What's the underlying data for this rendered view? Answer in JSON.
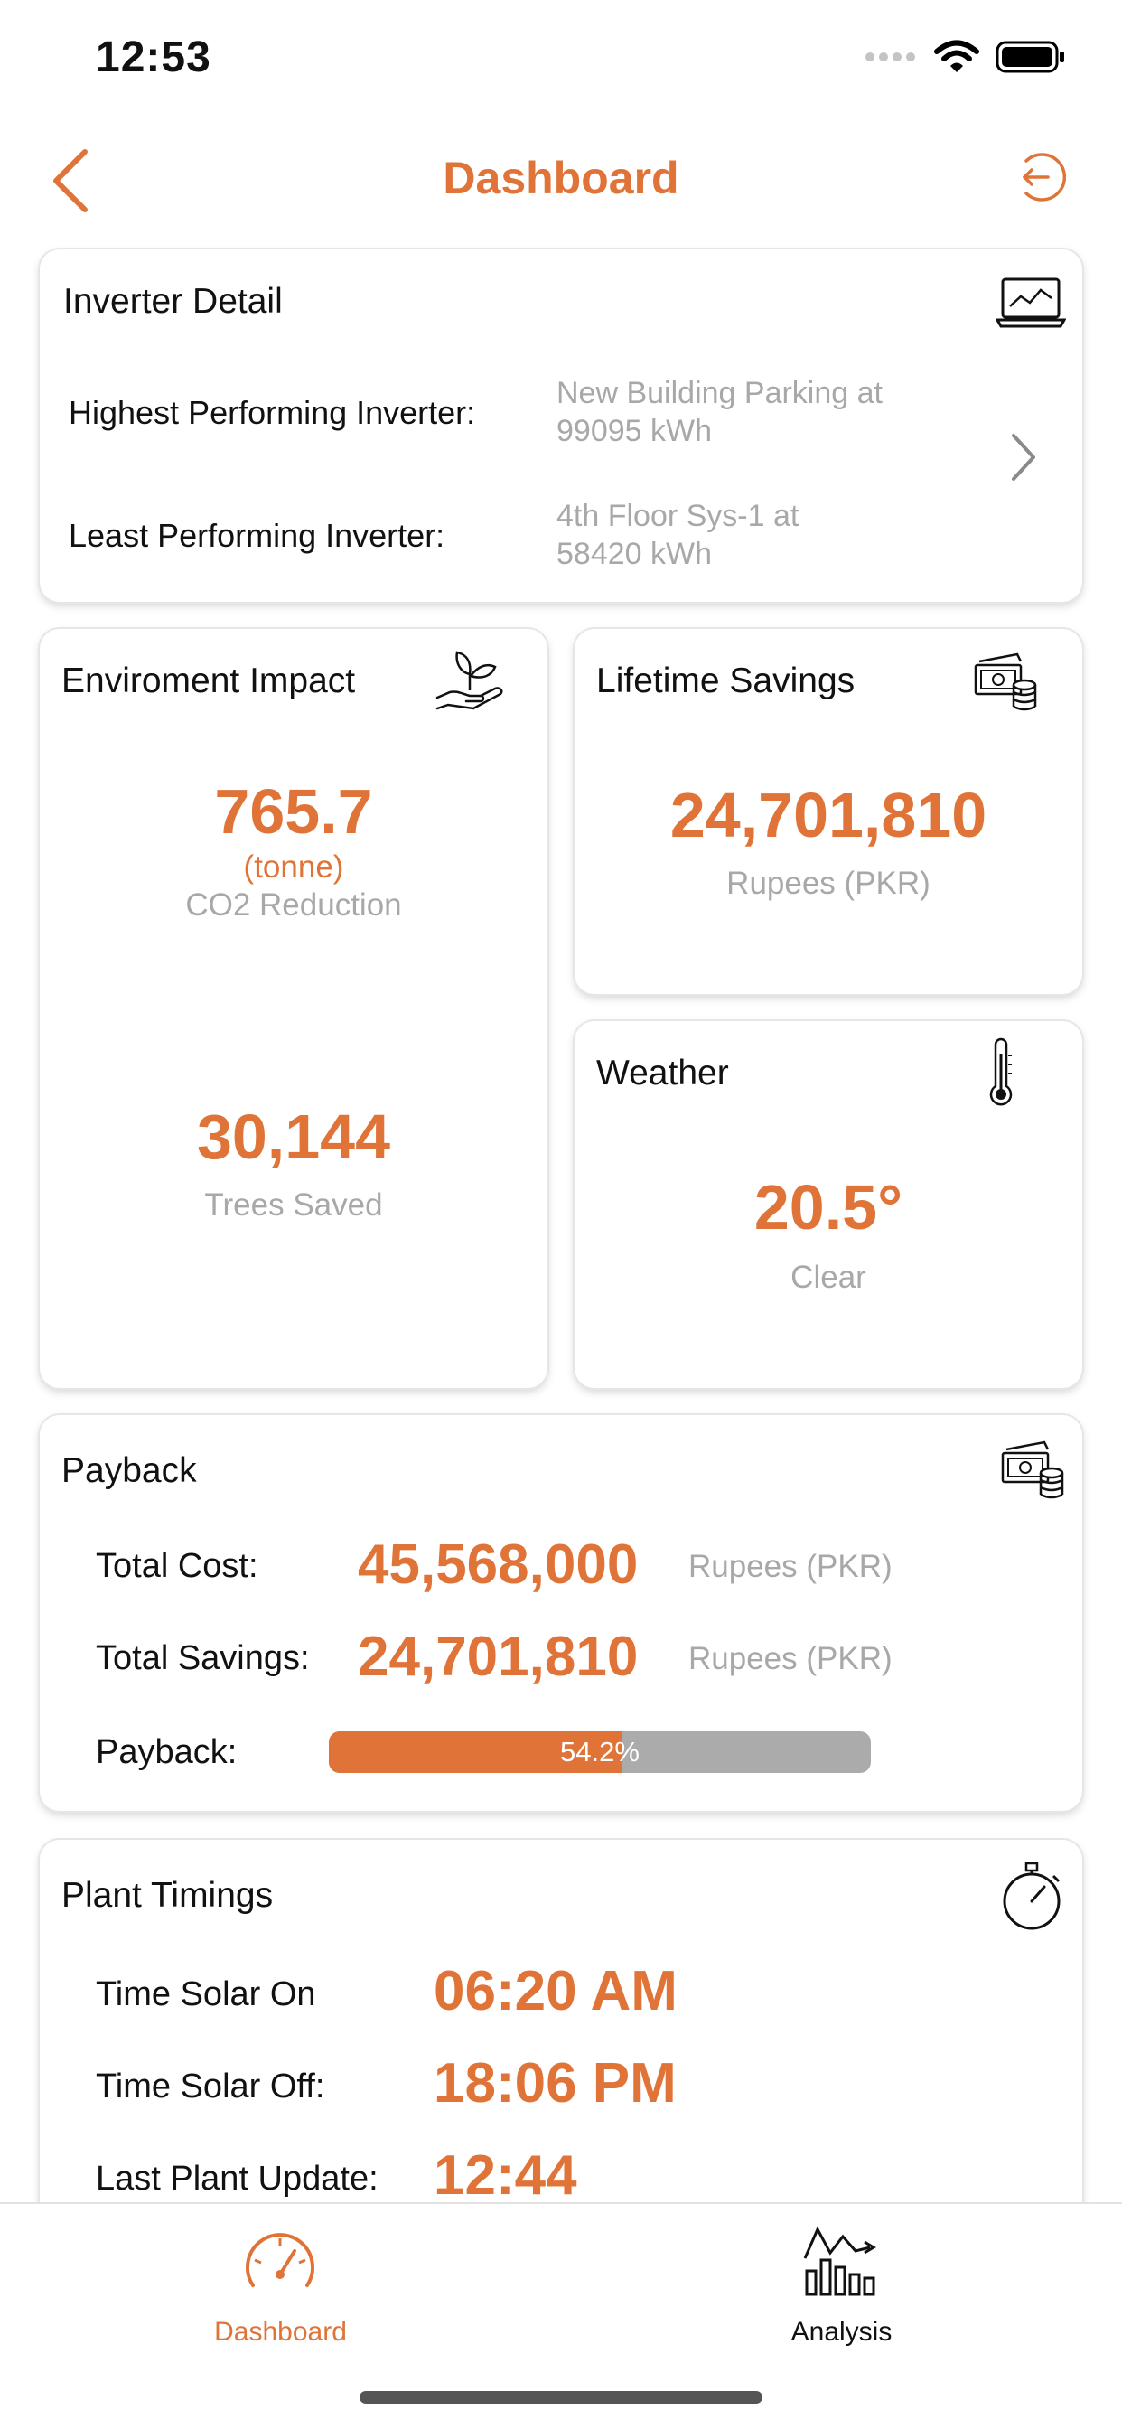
{
  "status_bar": {
    "time": "12:53"
  },
  "nav": {
    "title": "Dashboard",
    "back_icon": "chevron-left-icon",
    "logout_icon": "logout-icon"
  },
  "inverter_detail": {
    "title": "Inverter Detail",
    "icon": "laptop-chart-icon",
    "highest_label": "Highest Performing Inverter:",
    "highest_value_line1": "New Building Parking at",
    "highest_value_line2": "99095 kWh",
    "least_label": "Least Performing Inverter:",
    "least_value_line1": "4th Floor Sys-1 at",
    "least_value_line2": "58420 kWh"
  },
  "environment": {
    "title": "Enviroment Impact",
    "icon": "plant-hand-icon",
    "co2_value": "765.7",
    "co2_unit": "(tonne)",
    "co2_label": "CO2 Reduction",
    "trees_value": "30,144",
    "trees_label": "Trees Saved"
  },
  "lifetime_savings": {
    "title": "Lifetime Savings",
    "icon": "money-coins-icon",
    "value": "24,701,810",
    "unit": "Rupees (PKR)"
  },
  "weather": {
    "title": "Weather",
    "icon": "thermometer-icon",
    "value": "20.5°",
    "condition": "Clear"
  },
  "payback": {
    "title": "Payback",
    "icon": "money-coins-icon",
    "total_cost_label": "Total Cost:",
    "total_cost_value": "45,568,000",
    "total_cost_unit": "Rupees (PKR)",
    "total_savings_label": "Total Savings:",
    "total_savings_value": "24,701,810",
    "total_savings_unit": "Rupees (PKR)",
    "payback_label": "Payback:",
    "payback_percent_text": "54.2%",
    "payback_fraction": 0.542
  },
  "plant_timings": {
    "title": "Plant Timings",
    "icon": "stopwatch-icon",
    "solar_on_label": "Time Solar On",
    "solar_on_value": "06:20 AM",
    "solar_off_label": "Time Solar Off:",
    "solar_off_value": "18:06 PM",
    "last_update_label": "Last Plant Update:",
    "last_update_value": "12:44"
  },
  "tabbar": {
    "tabs": [
      {
        "label": "Dashboard",
        "icon": "speedometer-icon",
        "active": true
      },
      {
        "label": "Analysis",
        "icon": "analysis-chart-icon",
        "active": false
      }
    ]
  },
  "colors": {
    "accent": "#E07438",
    "gray_text": "#A8A8A8",
    "progress_track": "#ABABAB"
  }
}
